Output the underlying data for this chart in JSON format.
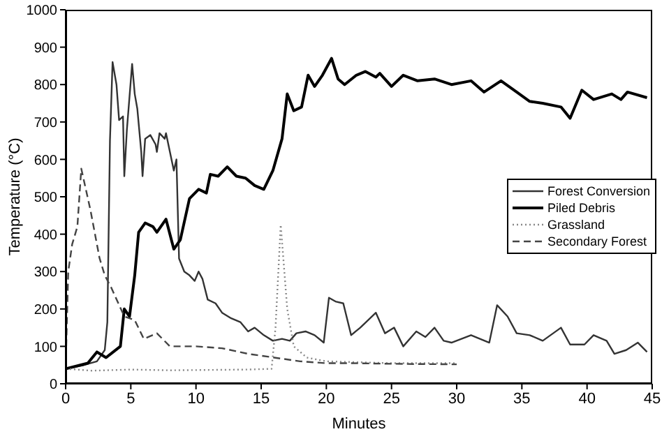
{
  "chart_data": {
    "type": "line",
    "xlabel": "Minutes",
    "ylabel": "Temperature (°C)",
    "xlim": [
      0,
      45
    ],
    "xticks": [
      0,
      5,
      10,
      15,
      20,
      25,
      30,
      35,
      40,
      45
    ],
    "ylim": [
      0,
      1000
    ],
    "yticks": [
      0,
      100,
      200,
      300,
      400,
      500,
      600,
      700,
      800,
      900,
      1000
    ],
    "legend": "right",
    "marker": "none",
    "series": [
      {
        "name": "Forest Conversion",
        "color": "#333333",
        "line_style": "solid",
        "x": [
          0,
          1.4,
          2.4,
          3.0,
          3.2,
          3.4,
          3.6,
          3.9,
          4.1,
          4.4,
          4.5,
          4.7,
          5.1,
          5.3,
          5.5,
          5.8,
          5.9,
          6.1,
          6.5,
          6.9,
          7.0,
          7.2,
          7.6,
          7.7,
          8.0,
          8.3,
          8.5,
          8.7,
          9.1,
          9.5,
          9.9,
          10.2,
          10.5,
          10.9,
          11.5,
          12.0,
          12.7,
          13.4,
          14.0,
          14.5,
          15.2,
          15.9,
          16.6,
          17.2,
          17.7,
          18.4,
          19.1,
          19.8,
          20.2,
          20.7,
          21.3,
          21.9,
          22.6,
          23.8,
          24.5,
          25.2,
          25.9,
          26.9,
          27.6,
          28.3,
          29.0,
          29.6,
          31.1,
          32.5,
          33.1,
          33.9,
          34.6,
          35.6,
          36.6,
          38.0,
          38.7,
          39.8,
          40.5,
          41.5,
          42.1,
          43.0,
          43.9,
          44.6
        ],
        "values": [
          40,
          50,
          60,
          90,
          165,
          650,
          860,
          800,
          705,
          715,
          555,
          680,
          855,
          775,
          735,
          620,
          555,
          655,
          665,
          640,
          620,
          670,
          655,
          670,
          620,
          570,
          600,
          335,
          300,
          290,
          275,
          300,
          280,
          225,
          215,
          190,
          175,
          165,
          140,
          150,
          130,
          115,
          120,
          115,
          135,
          140,
          130,
          110,
          230,
          220,
          215,
          130,
          150,
          190,
          135,
          150,
          100,
          140,
          125,
          150,
          115,
          110,
          130,
          110,
          210,
          180,
          135,
          130,
          115,
          150,
          105,
          105,
          130,
          115,
          80,
          90,
          110,
          85
        ]
      },
      {
        "name": "Piled Debris",
        "color": "#000000",
        "line_style": "solid",
        "x": [
          0,
          1.7,
          2.4,
          3.1,
          4.2,
          4.5,
          4.9,
          5.3,
          5.6,
          6.1,
          6.7,
          7.0,
          7.7,
          8.3,
          8.8,
          9.5,
          10.2,
          10.8,
          11.1,
          11.7,
          12.4,
          13.1,
          13.8,
          14.5,
          15.2,
          15.9,
          16.6,
          17.0,
          17.5,
          18.1,
          18.6,
          19.1,
          19.7,
          20.4,
          20.9,
          21.4,
          22.3,
          23.0,
          23.8,
          24.1,
          25.0,
          25.9,
          27.0,
          28.3,
          29.6,
          31.1,
          32.1,
          33.4,
          34.6,
          35.6,
          36.6,
          38.0,
          38.7,
          39.6,
          40.5,
          41.9,
          42.6,
          43.1,
          44.6
        ],
        "values": [
          40,
          55,
          85,
          70,
          100,
          200,
          180,
          290,
          405,
          430,
          420,
          405,
          440,
          360,
          385,
          495,
          520,
          510,
          560,
          555,
          580,
          555,
          550,
          530,
          520,
          570,
          655,
          775,
          730,
          740,
          825,
          795,
          825,
          870,
          815,
          800,
          825,
          835,
          820,
          830,
          795,
          825,
          810,
          815,
          800,
          810,
          780,
          810,
          780,
          755,
          750,
          740,
          710,
          785,
          760,
          775,
          760,
          780,
          765
        ]
      },
      {
        "name": "Grassland",
        "color": "#888888",
        "line_style": "dotted",
        "x": [
          0,
          2,
          5,
          8,
          11,
          14,
          15.8,
          16.1,
          16.5,
          17.0,
          17.5,
          18.5,
          20,
          25,
          30
        ],
        "values": [
          40,
          35,
          38,
          36,
          37,
          38,
          40,
          150,
          425,
          200,
          100,
          70,
          60,
          55,
          55
        ]
      },
      {
        "name": "Secondary Forest",
        "color": "#444444",
        "line_style": "dashed",
        "x": [
          0,
          0.2,
          0.5,
          0.9,
          1.2,
          1.9,
          2.6,
          3.0,
          3.5,
          4.5,
          5.3,
          6.0,
          7.0,
          8.0,
          10,
          12,
          14,
          16,
          18,
          20,
          22,
          26,
          30
        ],
        "values": [
          40,
          300,
          373,
          420,
          575,
          465,
          336,
          290,
          257,
          180,
          170,
          120,
          135,
          100,
          100,
          95,
          80,
          70,
          60,
          55,
          55,
          53,
          52
        ]
      }
    ]
  }
}
